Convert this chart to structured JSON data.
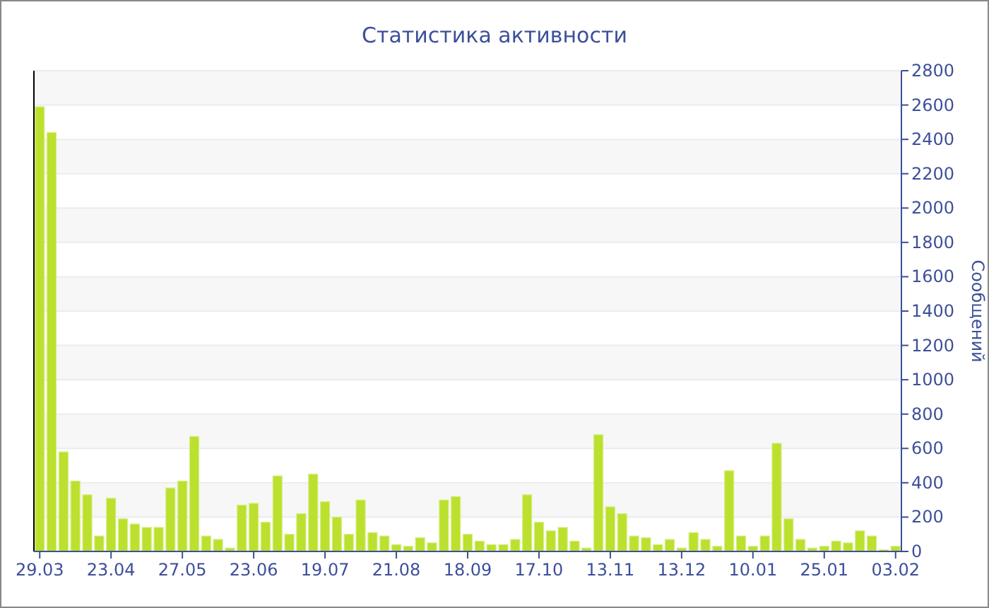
{
  "chart_data": {
    "type": "bar",
    "title": "Статистика активности",
    "ylabel": "Сообщений",
    "categories": [
      "29.03",
      null,
      null,
      null,
      null,
      null,
      "23.04",
      null,
      null,
      null,
      null,
      null,
      "27.05",
      null,
      null,
      null,
      null,
      null,
      "23.06",
      null,
      null,
      null,
      null,
      null,
      "19.07",
      null,
      null,
      null,
      null,
      null,
      "21.08",
      null,
      null,
      null,
      null,
      null,
      "18.09",
      null,
      null,
      null,
      null,
      null,
      "17.10",
      null,
      null,
      null,
      null,
      null,
      "13.11",
      null,
      null,
      null,
      null,
      null,
      "13.12",
      null,
      null,
      null,
      null,
      null,
      "10.01",
      null,
      null,
      null,
      null,
      null,
      "25.01",
      null,
      null,
      null,
      null,
      null,
      "03.02"
    ],
    "values": [
      2590,
      2440,
      580,
      410,
      330,
      90,
      310,
      190,
      160,
      140,
      140,
      370,
      410,
      670,
      90,
      70,
      20,
      270,
      280,
      170,
      440,
      100,
      220,
      450,
      290,
      200,
      100,
      300,
      110,
      90,
      40,
      30,
      80,
      50,
      300,
      320,
      100,
      60,
      40,
      40,
      70,
      330,
      170,
      120,
      140,
      60,
      20,
      680,
      260,
      220,
      90,
      80,
      40,
      70,
      20,
      110,
      70,
      30,
      470,
      90,
      30,
      90,
      630,
      190,
      70,
      20,
      30,
      60,
      50,
      120,
      90,
      10,
      30
    ],
    "color": "#bbe02e",
    "ylim": [
      0,
      2800
    ],
    "yticks": [
      0,
      200,
      400,
      600,
      800,
      1000,
      1200,
      1400,
      1600,
      1800,
      2000,
      2200,
      2400,
      2600,
      2800
    ],
    "grid": true
  }
}
